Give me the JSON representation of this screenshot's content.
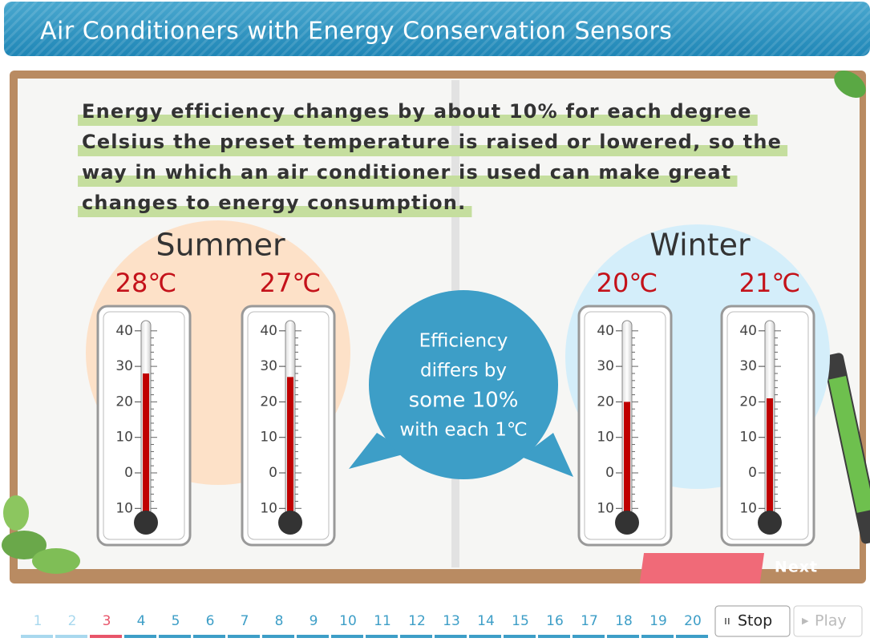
{
  "header": {
    "title": "Air Conditioners with Energy Conservation Sensors"
  },
  "paragraph": [
    "Energy efficiency changes by about 10% for each degree",
    "Celsius the preset temperature is raised or lowered, so the",
    "way in which an air conditioner is used can make great",
    "changes to energy consumption."
  ],
  "seasons": [
    {
      "name": "Summer",
      "thermometers": [
        {
          "label": "28℃",
          "level": 28
        },
        {
          "label": "27℃",
          "level": 27
        }
      ]
    },
    {
      "name": "Winter",
      "thermometers": [
        {
          "label": "20℃",
          "level": 20
        },
        {
          "label": "21℃",
          "level": 21
        }
      ]
    }
  ],
  "scale_ticks": [
    40,
    30,
    20,
    10,
    0,
    {
      "value": -10,
      "label": "10"
    }
  ],
  "bubble": [
    "Efficiency",
    "differs by",
    "some 10%",
    "with each 1℃"
  ],
  "next_button": "Next",
  "pages": [
    {
      "label": "1",
      "state": "visited"
    },
    {
      "label": "2",
      "state": "visited"
    },
    {
      "label": "3",
      "state": "current"
    },
    {
      "label": "4",
      "state": "pending"
    },
    {
      "label": "5",
      "state": "pending"
    },
    {
      "label": "6",
      "state": "pending"
    },
    {
      "label": "7",
      "state": "pending"
    },
    {
      "label": "8",
      "state": "pending"
    },
    {
      "label": "9",
      "state": "pending"
    },
    {
      "label": "10",
      "state": "pending"
    },
    {
      "label": "11",
      "state": "pending"
    },
    {
      "label": "12",
      "state": "pending"
    },
    {
      "label": "13",
      "state": "pending"
    },
    {
      "label": "14",
      "state": "pending"
    },
    {
      "label": "15",
      "state": "pending"
    },
    {
      "label": "16",
      "state": "pending"
    },
    {
      "label": "17",
      "state": "pending"
    },
    {
      "label": "18",
      "state": "pending"
    },
    {
      "label": "19",
      "state": "pending"
    },
    {
      "label": "20",
      "state": "pending"
    }
  ],
  "controls": {
    "stop": "Stop",
    "play": "Play"
  }
}
